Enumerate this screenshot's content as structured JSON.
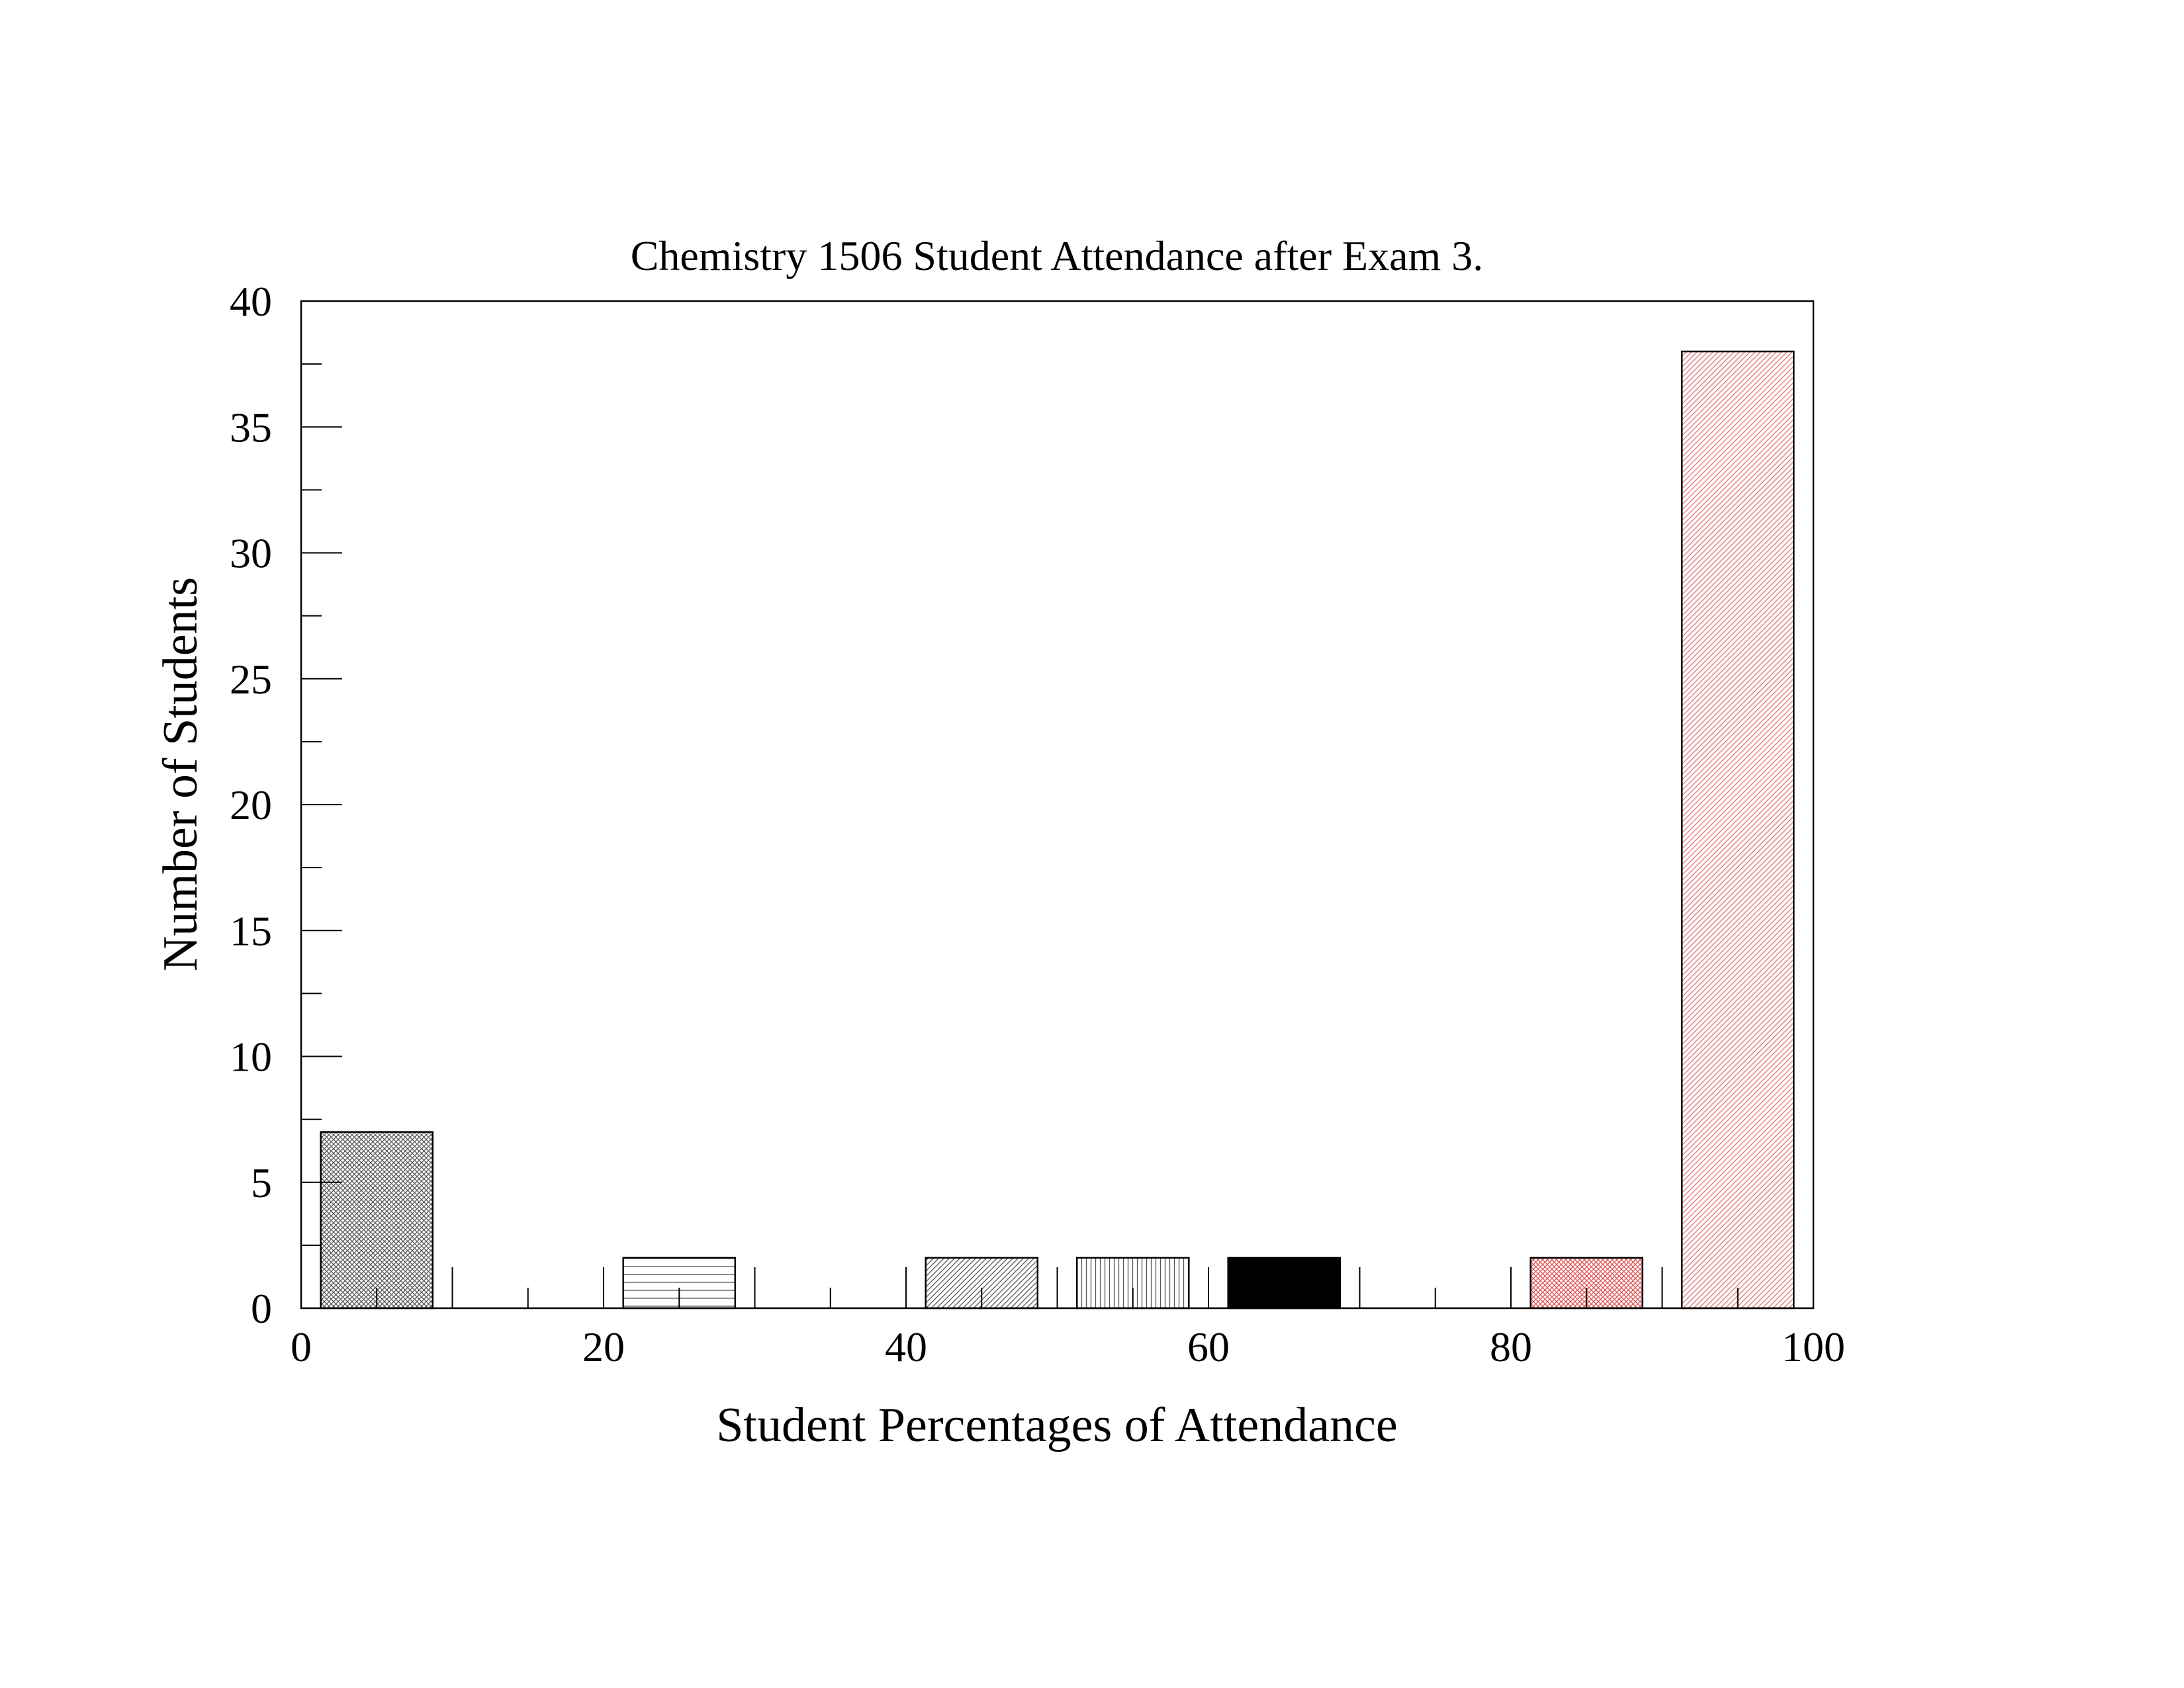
{
  "chart_data": {
    "type": "bar",
    "title": "Chemistry 1506 Student Attendance after Exam 3.",
    "xlabel": "Student Percentages of Attendance",
    "ylabel": "Number of Students",
    "xlim": [
      0,
      100
    ],
    "ylim": [
      0,
      40
    ],
    "x_ticks": [
      "0",
      "20",
      "40",
      "60",
      "80",
      "100"
    ],
    "y_ticks": [
      "0",
      "5",
      "10",
      "15",
      "20",
      "25",
      "30",
      "35",
      "40"
    ],
    "bins": [
      {
        "from": 0,
        "to": 10,
        "value": 7,
        "pattern": "crosshatch",
        "color": "#555555"
      },
      {
        "from": 10,
        "to": 20,
        "value": 0
      },
      {
        "from": 20,
        "to": 30,
        "value": 2,
        "pattern": "horizontal",
        "color": "#555555"
      },
      {
        "from": 30,
        "to": 40,
        "value": 0
      },
      {
        "from": 40,
        "to": 50,
        "value": 2,
        "pattern": "diagonal",
        "color": "#555555"
      },
      {
        "from": 50,
        "to": 60,
        "value": 2,
        "pattern": "vertical",
        "color": "#555555"
      },
      {
        "from": 60,
        "to": 70,
        "value": 2,
        "pattern": "solid",
        "color": "#000000"
      },
      {
        "from": 70,
        "to": 80,
        "value": 0
      },
      {
        "from": 80,
        "to": 90,
        "value": 2,
        "pattern": "crosshatch",
        "color": "#e05050"
      },
      {
        "from": 90,
        "to": 100,
        "value": 38,
        "pattern": "diagonal",
        "color": "#e07070"
      }
    ],
    "grid": false,
    "legend": "none"
  }
}
